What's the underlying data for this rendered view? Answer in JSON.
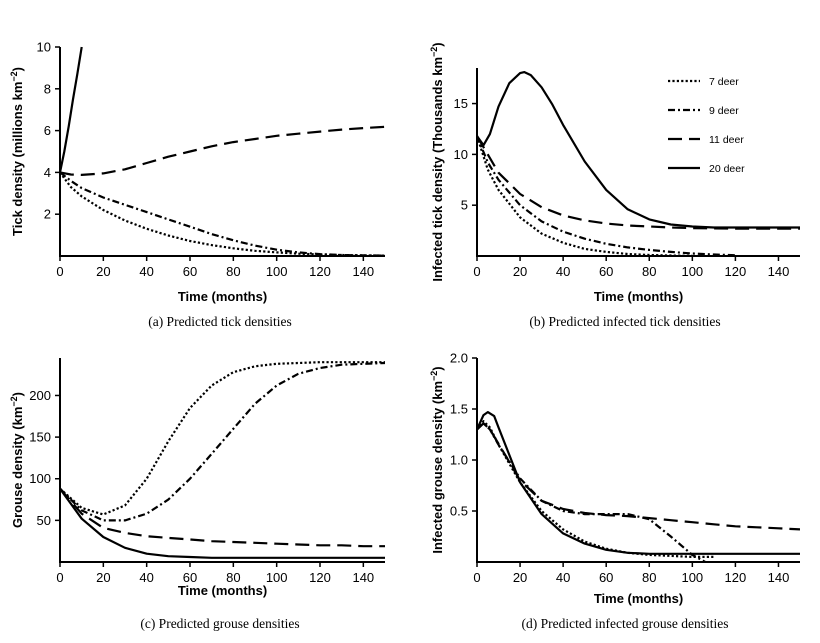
{
  "styles": {
    "7 deer": "2.2,2.2",
    "9 deer": "7,3,2,3",
    "11 deer": "14,7",
    "20 deer": "none"
  },
  "chart_data": [
    {
      "type": "line",
      "caption": "(a) Predicted tick densities",
      "xlabel": "Time (months)",
      "ylabel": "Tick density (millions km",
      "ylabel_sup": "−2",
      "ylabel_tail": ")",
      "xlim": [
        0,
        150
      ],
      "ylim": [
        0,
        10
      ],
      "xticks": [
        0,
        20,
        40,
        60,
        80,
        100,
        120,
        140
      ],
      "yticks": [
        2,
        4,
        6,
        8,
        10
      ],
      "show_y_zero": false,
      "series": [
        {
          "name": "7 deer",
          "x": [
            0,
            5,
            10,
            20,
            30,
            40,
            50,
            60,
            70,
            80,
            90,
            100,
            110,
            120,
            130,
            140,
            150
          ],
          "y": [
            4.0,
            3.3,
            2.85,
            2.2,
            1.7,
            1.3,
            0.98,
            0.72,
            0.52,
            0.37,
            0.25,
            0.17,
            0.11,
            0.07,
            0.05,
            0.03,
            0.02
          ]
        },
        {
          "name": "9 deer",
          "x": [
            0,
            5,
            10,
            20,
            30,
            40,
            50,
            60,
            70,
            80,
            90,
            100,
            110,
            120,
            130,
            140,
            150
          ],
          "y": [
            4.0,
            3.6,
            3.25,
            2.8,
            2.45,
            2.1,
            1.75,
            1.4,
            1.05,
            0.75,
            0.5,
            0.3,
            0.17,
            0.09,
            0.05,
            0.03,
            0.02
          ]
        },
        {
          "name": "11 deer",
          "x": [
            0,
            5,
            10,
            20,
            30,
            40,
            50,
            60,
            70,
            80,
            90,
            100,
            110,
            120,
            130,
            140,
            150
          ],
          "y": [
            4.0,
            3.9,
            3.88,
            3.95,
            4.15,
            4.45,
            4.75,
            5.0,
            5.25,
            5.45,
            5.6,
            5.75,
            5.85,
            5.95,
            6.05,
            6.12,
            6.18
          ]
        },
        {
          "name": "20 deer",
          "x": [
            0,
            2,
            4,
            6,
            8,
            10
          ],
          "y": [
            4.0,
            5.0,
            6.2,
            7.5,
            8.7,
            10.0
          ]
        }
      ]
    },
    {
      "type": "line",
      "caption": "(b) Predicted infected tick densities",
      "xlabel": "Time (months)",
      "ylabel": "Infected tick density (Thousands km",
      "ylabel_sup": "−2",
      "ylabel_tail": ")",
      "xlim": [
        0,
        150
      ],
      "ylim": [
        0,
        18.5
      ],
      "xticks": [
        0,
        20,
        40,
        60,
        80,
        100,
        120,
        140
      ],
      "yticks": [
        5,
        10,
        15
      ],
      "show_y_zero": false,
      "legend": {
        "position": "top-right",
        "entries": [
          "7 deer",
          "9 deer",
          "11 deer",
          "20 deer"
        ]
      },
      "series": [
        {
          "name": "7 deer",
          "x": [
            0,
            5,
            10,
            20,
            30,
            40,
            50,
            60,
            70,
            80,
            90,
            100
          ],
          "y": [
            11.8,
            8.5,
            6.5,
            3.8,
            2.2,
            1.3,
            0.7,
            0.4,
            0.2,
            0.1,
            0.05,
            0.02
          ]
        },
        {
          "name": "9 deer",
          "x": [
            0,
            5,
            10,
            20,
            30,
            40,
            50,
            60,
            70,
            80,
            90,
            100,
            110,
            120
          ],
          "y": [
            11.8,
            9.2,
            7.5,
            5.0,
            3.4,
            2.4,
            1.7,
            1.2,
            0.85,
            0.6,
            0.4,
            0.25,
            0.15,
            0.08
          ]
        },
        {
          "name": "11 deer",
          "x": [
            0,
            5,
            10,
            20,
            30,
            40,
            50,
            60,
            70,
            80,
            90,
            100,
            110,
            120,
            130,
            140,
            150
          ],
          "y": [
            11.8,
            10.0,
            8.2,
            6.1,
            4.8,
            4.0,
            3.5,
            3.2,
            3.0,
            2.9,
            2.8,
            2.75,
            2.72,
            2.7,
            2.7,
            2.7,
            2.7
          ]
        },
        {
          "name": "20 deer",
          "x": [
            0,
            3,
            6,
            10,
            15,
            20,
            22,
            25,
            30,
            35,
            40,
            50,
            60,
            70,
            80,
            90,
            100,
            110,
            120,
            130,
            140,
            150
          ],
          "y": [
            11.8,
            10.9,
            12.0,
            14.7,
            17.0,
            18.0,
            18.1,
            17.8,
            16.6,
            14.9,
            12.9,
            9.3,
            6.5,
            4.6,
            3.6,
            3.1,
            2.9,
            2.8,
            2.8,
            2.8,
            2.8,
            2.8
          ]
        }
      ]
    },
    {
      "type": "line",
      "caption": "(c) Predicted grouse densities",
      "xlabel": "Time (months)",
      "ylabel": "Grouse density (km",
      "ylabel_sup": "−2",
      "ylabel_tail": ")",
      "xlim": [
        0,
        150
      ],
      "ylim": [
        0,
        245
      ],
      "xticks": [
        0,
        20,
        40,
        60,
        80,
        100,
        120,
        140
      ],
      "yticks": [
        50,
        100,
        150,
        200
      ],
      "show_y_zero": false,
      "series": [
        {
          "name": "7 deer",
          "x": [
            0,
            10,
            20,
            30,
            40,
            50,
            60,
            70,
            80,
            90,
            100,
            110,
            120,
            130,
            140,
            150
          ],
          "y": [
            88,
            65,
            57,
            68,
            100,
            145,
            185,
            212,
            228,
            235,
            238,
            239,
            240,
            240,
            240,
            240
          ]
        },
        {
          "name": "9 deer",
          "x": [
            0,
            10,
            20,
            30,
            40,
            50,
            60,
            70,
            80,
            90,
            100,
            110,
            120,
            130,
            140,
            150
          ],
          "y": [
            88,
            62,
            50,
            50,
            58,
            75,
            100,
            130,
            160,
            190,
            212,
            226,
            233,
            237,
            238,
            239
          ]
        },
        {
          "name": "11 deer",
          "x": [
            0,
            10,
            20,
            30,
            40,
            50,
            60,
            70,
            80,
            90,
            100,
            110,
            120,
            130,
            140,
            150
          ],
          "y": [
            88,
            58,
            41,
            35,
            31,
            29,
            27,
            25,
            24,
            23,
            22,
            21,
            20,
            20,
            19,
            19
          ]
        },
        {
          "name": "20 deer",
          "x": [
            0,
            10,
            20,
            30,
            40,
            50,
            60,
            70,
            80,
            90,
            100,
            110,
            120,
            130,
            140,
            150
          ],
          "y": [
            88,
            52,
            30,
            17,
            10,
            7,
            6,
            5,
            5,
            5,
            5,
            5,
            5,
            5,
            5,
            5
          ]
        }
      ]
    },
    {
      "type": "line",
      "caption": "(d) Predicted infected grouse densities",
      "xlabel": "Time (months)",
      "ylabel": "Infected grouse density (km",
      "ylabel_sup": "−2",
      "ylabel_tail": ")",
      "xlim": [
        0,
        150
      ],
      "ylim": [
        0,
        2.0
      ],
      "xticks": [
        0,
        20,
        40,
        60,
        80,
        100,
        120,
        140
      ],
      "yticks": [
        0.5,
        1.0,
        1.5,
        2.0
      ],
      "yticklabels": [
        "0.5",
        "1.0",
        "1.5",
        "2.0"
      ],
      "show_y_zero": false,
      "series": [
        {
          "name": "7 deer",
          "x": [
            0,
            3,
            6,
            10,
            20,
            30,
            40,
            50,
            60,
            70,
            80,
            90,
            100,
            110
          ],
          "y": [
            1.3,
            1.38,
            1.32,
            1.15,
            0.78,
            0.5,
            0.32,
            0.2,
            0.13,
            0.09,
            0.07,
            0.06,
            0.05,
            0.05
          ]
        },
        {
          "name": "9 deer",
          "x": [
            0,
            3,
            6,
            10,
            20,
            30,
            40,
            50,
            60,
            70,
            80,
            90,
            100,
            106
          ],
          "y": [
            1.3,
            1.36,
            1.3,
            1.15,
            0.82,
            0.6,
            0.5,
            0.47,
            0.47,
            0.47,
            0.42,
            0.25,
            0.07,
            0.0
          ]
        },
        {
          "name": "11 deer",
          "x": [
            0,
            3,
            6,
            10,
            20,
            30,
            40,
            50,
            60,
            70,
            80,
            90,
            100,
            110,
            120,
            130,
            140,
            150
          ],
          "y": [
            1.3,
            1.36,
            1.3,
            1.16,
            0.8,
            0.6,
            0.52,
            0.48,
            0.46,
            0.45,
            0.43,
            0.41,
            0.39,
            0.37,
            0.35,
            0.34,
            0.33,
            0.32
          ]
        },
        {
          "name": "20 deer",
          "x": [
            0,
            3,
            5,
            8,
            10,
            15,
            20,
            30,
            40,
            50,
            60,
            70,
            80,
            90,
            100,
            110,
            120,
            130,
            140,
            150
          ],
          "y": [
            1.3,
            1.44,
            1.47,
            1.43,
            1.32,
            1.05,
            0.78,
            0.47,
            0.28,
            0.18,
            0.12,
            0.09,
            0.08,
            0.08,
            0.08,
            0.08,
            0.08,
            0.08,
            0.08,
            0.08
          ]
        }
      ]
    }
  ]
}
